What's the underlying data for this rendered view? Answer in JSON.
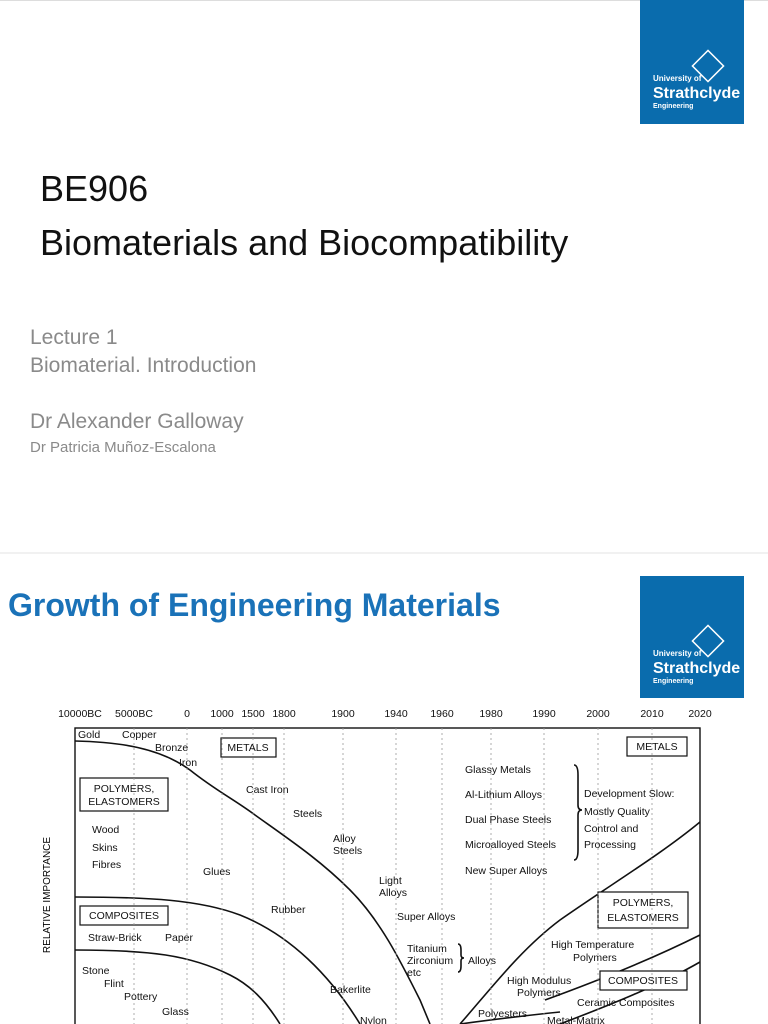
{
  "slide1": {
    "logo": {
      "lines": [
        "University of",
        "Strathclyde",
        "Engineering"
      ]
    },
    "title_lines": [
      "BE906",
      "Biomaterials and Biocompatibility"
    ],
    "lecture": "Lecture 1",
    "topic": "Biomaterial. Introduction",
    "author": "Dr Alexander Galloway",
    "coauthor": "Dr Patricia Muñoz-Escalona"
  },
  "slide2": {
    "logo": {
      "lines": [
        "University of",
        "Strathclyde",
        "Engineering"
      ]
    },
    "title": "Growth of Engineering Materials",
    "diagram": {
      "years": [
        "10000BC",
        "5000BC",
        "0",
        "1000",
        "1500",
        "1800",
        "1900",
        "1940",
        "1960",
        "1980",
        "1990",
        "2000",
        "2010",
        "2020"
      ],
      "y_axis_label": "RELATIVE IMPORTANCE",
      "labels": [
        "Gold",
        "Copper",
        "Bronze",
        "Iron",
        "METALS",
        "POLYMERS,",
        "ELASTOMERS",
        "Cast Iron",
        "Steels",
        "Wood",
        "Skins",
        "Fibres",
        "Alloy",
        "Steels",
        "Glues",
        "Light",
        "Alloys",
        "Rubber",
        "Super Alloys",
        "COMPOSITES",
        "Straw-Brick",
        "Paper",
        "Titanium",
        "Zirconium",
        "etc",
        "Alloys",
        "Stone",
        "Flint",
        "Pottery",
        "Glass",
        "Bakerlite",
        "Nylon",
        "Glassy Metals",
        "Al-Lithium Alloys",
        "Dual Phase Steels",
        "Microalloyed Steels",
        "New Super Alloys",
        "Development Slow:",
        "Mostly Quality",
        "Control and",
        "Processing",
        "METALS",
        "POLYMERS,",
        "ELASTOMERS",
        "High Temperature",
        "Polymers",
        "High Modulus",
        "Polymers",
        "COMPOSITES",
        "Ceramic Composites",
        "Polyesters",
        "Metal-Matrix"
      ]
    }
  }
}
